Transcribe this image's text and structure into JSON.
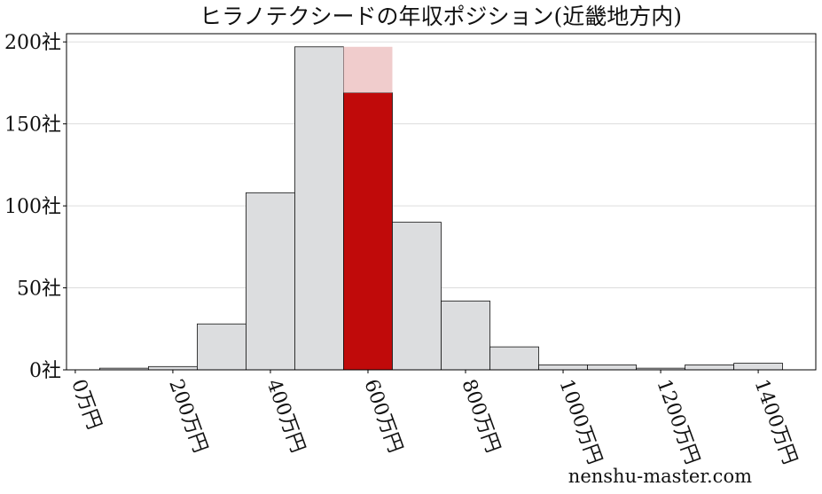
{
  "chart_data": {
    "type": "histogram",
    "title": "ヒラノテクシードの年収ポジション(近畿地方内)",
    "watermark": "nenshu-master.com",
    "bins": [
      50,
      150,
      250,
      350,
      450,
      550,
      650,
      750,
      850,
      950,
      1050,
      1150,
      1250,
      1350,
      1450
    ],
    "counts": [
      1,
      2,
      28,
      108,
      197,
      169,
      90,
      42,
      14,
      3,
      3,
      1,
      3,
      4
    ],
    "colors": [
      "#dcdddf",
      "#dcdddf",
      "#dcdddf",
      "#dcdddf",
      "#dcdddf",
      "#c00a0a",
      "#dcdddf",
      "#dcdddf",
      "#dcdddf",
      "#dcdddf",
      "#dcdddf",
      "#dcdddf",
      "#dcdddf",
      "#dcdddf"
    ],
    "highlight_band": {
      "x": [
        550,
        650
      ],
      "y": [
        169,
        197
      ],
      "color": "#f0cccc"
    },
    "xlim": [
      -18,
      1518
    ],
    "ylim": [
      0,
      205
    ],
    "xticks": [
      {
        "value": 0,
        "label": "0万円"
      },
      {
        "value": 200,
        "label": "200万円"
      },
      {
        "value": 400,
        "label": "400万円"
      },
      {
        "value": 600,
        "label": "600万円"
      },
      {
        "value": 800,
        "label": "800万円"
      },
      {
        "value": 1000,
        "label": "1000万円"
      },
      {
        "value": 1200,
        "label": "1200万円"
      },
      {
        "value": 1400,
        "label": "1400万円"
      }
    ],
    "yticks": [
      {
        "value": 0,
        "label": "0社"
      },
      {
        "value": 50,
        "label": "50社"
      },
      {
        "value": 100,
        "label": "100社"
      },
      {
        "value": 150,
        "label": "150社"
      },
      {
        "value": 200,
        "label": "200社"
      }
    ],
    "grid": true
  }
}
